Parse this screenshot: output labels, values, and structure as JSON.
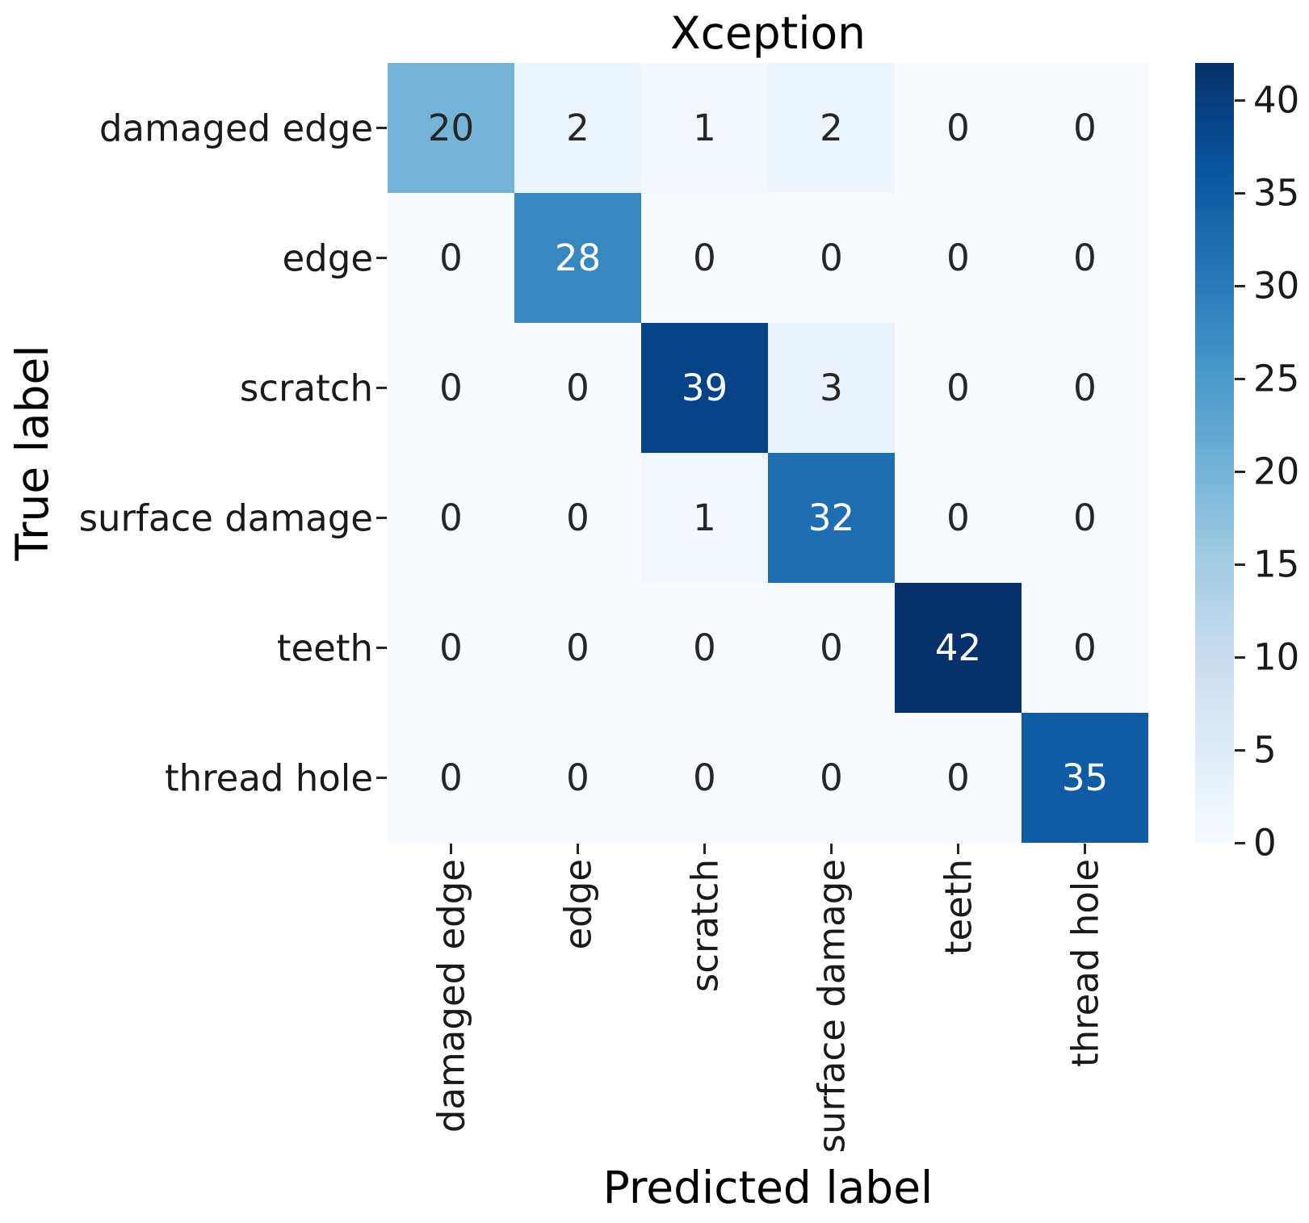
{
  "chart_data": {
    "type": "heatmap",
    "title": "Xception",
    "xlabel": "Predicted label",
    "ylabel": "True label",
    "categories": [
      "damaged edge",
      "edge",
      "scratch",
      "surface damage",
      "teeth",
      "thread hole"
    ],
    "matrix": [
      [
        20,
        2,
        1,
        2,
        0,
        0
      ],
      [
        0,
        28,
        0,
        0,
        0,
        0
      ],
      [
        0,
        0,
        39,
        3,
        0,
        0
      ],
      [
        0,
        0,
        1,
        32,
        0,
        0
      ],
      [
        0,
        0,
        0,
        0,
        42,
        0
      ],
      [
        0,
        0,
        0,
        0,
        0,
        35
      ]
    ],
    "vmin": 0,
    "vmax": 42,
    "colormap": "Blues",
    "colormap_stops": [
      "#f7fbff",
      "#deebf7",
      "#c6dbef",
      "#9ecae1",
      "#6baed6",
      "#4292c6",
      "#2171b5",
      "#08519c",
      "#08306b"
    ],
    "colorbar_ticks": [
      0,
      5,
      10,
      15,
      20,
      25,
      30,
      35,
      40
    ],
    "colorbar_position": "right",
    "annotation_color_dark": "#262626",
    "annotation_color_light": "#ffffff",
    "grid": false
  }
}
